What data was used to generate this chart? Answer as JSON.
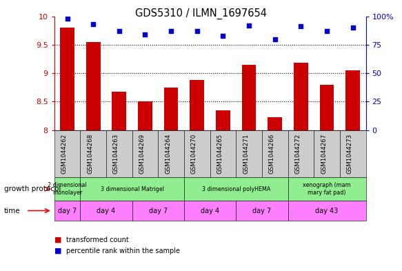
{
  "title": "GDS5310 / ILMN_1697654",
  "samples": [
    "GSM1044262",
    "GSM1044268",
    "GSM1044263",
    "GSM1044269",
    "GSM1044264",
    "GSM1044270",
    "GSM1044265",
    "GSM1044271",
    "GSM1044266",
    "GSM1044272",
    "GSM1044267",
    "GSM1044273"
  ],
  "bar_values": [
    9.8,
    9.55,
    8.68,
    8.5,
    8.75,
    8.88,
    8.35,
    9.15,
    8.22,
    9.18,
    8.8,
    9.05
  ],
  "dot_values": [
    98,
    93,
    87,
    84,
    87,
    87,
    83,
    92,
    80,
    91,
    87,
    90
  ],
  "ylim_left": [
    8,
    10
  ],
  "ylim_right": [
    0,
    100
  ],
  "yticks_left": [
    8,
    8.5,
    9,
    9.5,
    10
  ],
  "yticks_right": [
    0,
    25,
    50,
    75,
    100
  ],
  "bar_color": "#cc0000",
  "dot_color": "#0000cc",
  "bar_bottom": 8,
  "growth_protocol_groups": [
    {
      "label": "2 dimensional\nmonolayer",
      "start": 0,
      "end": 1,
      "color": "#90ee90"
    },
    {
      "label": "3 dimensional Matrigel",
      "start": 1,
      "end": 5,
      "color": "#90ee90"
    },
    {
      "label": "3 dimensional polyHEMA",
      "start": 5,
      "end": 9,
      "color": "#90ee90"
    },
    {
      "label": "xenograph (mam\nmary fat pad)",
      "start": 9,
      "end": 12,
      "color": "#90ee90"
    }
  ],
  "time_groups": [
    {
      "label": "day 7",
      "start": 0,
      "end": 1,
      "color": "#ff80ff"
    },
    {
      "label": "day 4",
      "start": 1,
      "end": 3,
      "color": "#ff80ff"
    },
    {
      "label": "day 7",
      "start": 3,
      "end": 5,
      "color": "#ff80ff"
    },
    {
      "label": "day 4",
      "start": 5,
      "end": 7,
      "color": "#ff80ff"
    },
    {
      "label": "day 7",
      "start": 7,
      "end": 9,
      "color": "#ff80ff"
    },
    {
      "label": "day 43",
      "start": 9,
      "end": 12,
      "color": "#ff80ff"
    }
  ],
  "left_axis_color": "#cc0000",
  "right_axis_color": "#0000cc",
  "xticklabels_bgcolor": "#cccccc",
  "dotted_lines": [
    8.5,
    9.0,
    9.5
  ]
}
